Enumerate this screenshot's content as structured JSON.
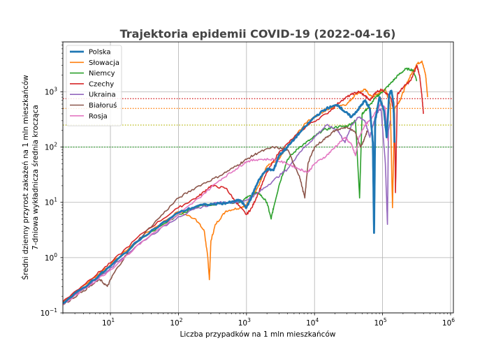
{
  "chart_data": {
    "type": "line",
    "title": "Trajektoria epidemii COVID-19 (2022-04-16)",
    "xlabel": "Liczba przypadków na 1 mln mieszkańców",
    "ylabel_line1": "Średni dzienny przyrost zakażeń na 1 mln mieszkańców",
    "ylabel_line2": "7-dniowa wykładnicza średnia krocząca",
    "xscale": "log",
    "yscale": "log",
    "xlim": [
      2,
      1100000
    ],
    "ylim": [
      0.1,
      8000
    ],
    "grid": true,
    "legend_position": "top-left",
    "x_ticks": [
      {
        "exp": 1,
        "label_base": "10",
        "label_exp": "1"
      },
      {
        "exp": 2,
        "label_base": "10",
        "label_exp": "2"
      },
      {
        "exp": 3,
        "label_base": "10",
        "label_exp": "3"
      },
      {
        "exp": 4,
        "label_base": "10",
        "label_exp": "4"
      },
      {
        "exp": 5,
        "label_base": "10",
        "label_exp": "5"
      },
      {
        "exp": 6,
        "label_base": "10",
        "label_exp": "6"
      }
    ],
    "y_ticks": [
      {
        "exp": -1,
        "label_base": "10",
        "label_exp": "−1"
      },
      {
        "exp": 0,
        "label_base": "10",
        "label_exp": "0"
      },
      {
        "exp": 1,
        "label_base": "10",
        "label_exp": "1"
      },
      {
        "exp": 2,
        "label_base": "10",
        "label_exp": "2"
      },
      {
        "exp": 3,
        "label_base": "10",
        "label_exp": "3"
      }
    ],
    "reference_lines": [
      {
        "y": 750,
        "color": "#d62728"
      },
      {
        "y": 500,
        "color": "#ff7f0e"
      },
      {
        "y": 250,
        "color": "#bcbd22"
      },
      {
        "y": 100,
        "color": "#2ca02c"
      }
    ],
    "series": [
      {
        "name": "Polska",
        "color": "#1f77b4",
        "width": 2.8,
        "points": [
          [
            2,
            0.15
          ],
          [
            5,
            0.35
          ],
          [
            10,
            0.7
          ],
          [
            30,
            2.4
          ],
          [
            100,
            6.5
          ],
          [
            200,
            8.8
          ],
          [
            400,
            9.5
          ],
          [
            600,
            10
          ],
          [
            800,
            11
          ],
          [
            1000,
            8
          ],
          [
            1200,
            13
          ],
          [
            1500,
            25
          ],
          [
            2000,
            40
          ],
          [
            2500,
            38
          ],
          [
            3000,
            70
          ],
          [
            4000,
            100
          ],
          [
            6000,
            180
          ],
          [
            10000,
            350
          ],
          [
            15000,
            500
          ],
          [
            22000,
            580
          ],
          [
            27000,
            450
          ],
          [
            35000,
            350
          ],
          [
            45000,
            500
          ],
          [
            55000,
            700
          ],
          [
            65000,
            500
          ],
          [
            72000,
            120
          ],
          [
            75000,
            2.8
          ],
          [
            78000,
            300
          ],
          [
            90000,
            800
          ],
          [
            105000,
            450
          ],
          [
            115000,
            150
          ],
          [
            125000,
            900
          ],
          [
            135000,
            1050
          ],
          [
            145000,
            600
          ],
          [
            150000,
            120
          ]
        ]
      },
      {
        "name": "Słowacja",
        "color": "#ff7f0e",
        "width": 1.6,
        "points": [
          [
            2,
            0.16
          ],
          [
            5,
            0.38
          ],
          [
            10,
            0.75
          ],
          [
            30,
            2.5
          ],
          [
            100,
            6.8
          ],
          [
            180,
            5
          ],
          [
            240,
            3
          ],
          [
            270,
            1
          ],
          [
            285,
            0.4
          ],
          [
            300,
            2
          ],
          [
            350,
            4
          ],
          [
            500,
            7
          ],
          [
            800,
            8
          ],
          [
            1000,
            9
          ],
          [
            1500,
            20
          ],
          [
            2000,
            45
          ],
          [
            3000,
            60
          ],
          [
            5000,
            150
          ],
          [
            8000,
            300
          ],
          [
            12000,
            400
          ],
          [
            20000,
            550
          ],
          [
            30000,
            600
          ],
          [
            40000,
            900
          ],
          [
            55000,
            1100
          ],
          [
            70000,
            800
          ],
          [
            90000,
            950
          ],
          [
            110000,
            1100
          ],
          [
            130000,
            600
          ],
          [
            140000,
            8
          ],
          [
            150000,
            500
          ],
          [
            180000,
            700
          ],
          [
            220000,
            1300
          ],
          [
            260000,
            2000
          ],
          [
            320000,
            3200
          ],
          [
            380000,
            3600
          ],
          [
            430000,
            2000
          ],
          [
            460000,
            800
          ]
        ]
      },
      {
        "name": "Niemcy",
        "color": "#2ca02c",
        "width": 1.6,
        "points": [
          [
            2,
            0.15
          ],
          [
            5,
            0.34
          ],
          [
            10,
            0.7
          ],
          [
            30,
            2.3
          ],
          [
            100,
            6
          ],
          [
            200,
            8.5
          ],
          [
            500,
            10
          ],
          [
            800,
            10
          ],
          [
            1100,
            13
          ],
          [
            1500,
            15
          ],
          [
            2000,
            10
          ],
          [
            2300,
            5
          ],
          [
            2500,
            8
          ],
          [
            3000,
            20
          ],
          [
            4000,
            60
          ],
          [
            6000,
            100
          ],
          [
            9000,
            140
          ],
          [
            13000,
            200
          ],
          [
            20000,
            230
          ],
          [
            30000,
            240
          ],
          [
            40000,
            300
          ],
          [
            46000,
            12
          ],
          [
            50000,
            400
          ],
          [
            60000,
            500
          ],
          [
            80000,
            800
          ],
          [
            100000,
            1000
          ],
          [
            130000,
            1400
          ],
          [
            170000,
            2000
          ],
          [
            220000,
            2600
          ],
          [
            280000,
            2500
          ],
          [
            320000,
            1600
          ]
        ]
      },
      {
        "name": "Czechy",
        "color": "#d62728",
        "width": 1.6,
        "points": [
          [
            2,
            0.16
          ],
          [
            5,
            0.4
          ],
          [
            10,
            0.8
          ],
          [
            30,
            2.8
          ],
          [
            100,
            8
          ],
          [
            200,
            13
          ],
          [
            300,
            20
          ],
          [
            500,
            18
          ],
          [
            700,
            10
          ],
          [
            1000,
            6
          ],
          [
            1200,
            8
          ],
          [
            1500,
            15
          ],
          [
            2000,
            35
          ],
          [
            3000,
            80
          ],
          [
            5000,
            150
          ],
          [
            8000,
            250
          ],
          [
            15000,
            400
          ],
          [
            25000,
            700
          ],
          [
            35000,
            900
          ],
          [
            45000,
            1000
          ],
          [
            55000,
            850
          ],
          [
            65000,
            700
          ],
          [
            80000,
            1000
          ],
          [
            100000,
            1100
          ],
          [
            130000,
            800
          ],
          [
            150000,
            400
          ],
          [
            155000,
            15
          ],
          [
            165000,
            900
          ],
          [
            200000,
            1200
          ],
          [
            260000,
            1600
          ],
          [
            320000,
            3000
          ],
          [
            350000,
            2000
          ],
          [
            380000,
            800
          ],
          [
            400000,
            400
          ]
        ]
      },
      {
        "name": "Ukraina",
        "color": "#9467bd",
        "width": 1.6,
        "points": [
          [
            2,
            0.15
          ],
          [
            5,
            0.33
          ],
          [
            10,
            0.65
          ],
          [
            30,
            2
          ],
          [
            100,
            5.5
          ],
          [
            200,
            8
          ],
          [
            400,
            10
          ],
          [
            700,
            10
          ],
          [
            1000,
            11
          ],
          [
            1500,
            15
          ],
          [
            2500,
            25
          ],
          [
            4000,
            40
          ],
          [
            6000,
            80
          ],
          [
            10000,
            150
          ],
          [
            15000,
            250
          ],
          [
            22000,
            200
          ],
          [
            28000,
            120
          ],
          [
            35000,
            250
          ],
          [
            45000,
            350
          ],
          [
            55000,
            300
          ],
          [
            65000,
            150
          ],
          [
            80000,
            400
          ],
          [
            95000,
            500
          ],
          [
            110000,
            50
          ],
          [
            118000,
            4
          ],
          [
            122000,
            200
          ],
          [
            130000,
            300
          ]
        ]
      },
      {
        "name": "Białoruś",
        "color": "#8c564b",
        "width": 1.6,
        "points": [
          [
            2,
            0.14
          ],
          [
            4,
            0.25
          ],
          [
            7,
            0.4
          ],
          [
            9,
            0.3
          ],
          [
            11,
            0.5
          ],
          [
            20,
            1.5
          ],
          [
            50,
            5
          ],
          [
            100,
            12
          ],
          [
            200,
            20
          ],
          [
            400,
            30
          ],
          [
            700,
            45
          ],
          [
            1000,
            60
          ],
          [
            1500,
            80
          ],
          [
            2500,
            100
          ],
          [
            4000,
            90
          ],
          [
            6000,
            30
          ],
          [
            7200,
            12
          ],
          [
            8000,
            50
          ],
          [
            10000,
            100
          ],
          [
            15000,
            150
          ],
          [
            20000,
            200
          ],
          [
            30000,
            230
          ],
          [
            40000,
            180
          ],
          [
            48000,
            100
          ],
          [
            55000,
            150
          ],
          [
            60000,
            200
          ]
        ]
      },
      {
        "name": "Rosja",
        "color": "#e377c2",
        "width": 1.6,
        "points": [
          [
            2,
            0.14
          ],
          [
            5,
            0.32
          ],
          [
            10,
            0.6
          ],
          [
            30,
            2
          ],
          [
            100,
            6
          ],
          [
            200,
            12
          ],
          [
            400,
            25
          ],
          [
            700,
            40
          ],
          [
            1000,
            55
          ],
          [
            1500,
            60
          ],
          [
            2500,
            60
          ],
          [
            4000,
            50
          ],
          [
            6000,
            40
          ],
          [
            8000,
            35
          ],
          [
            10000,
            50
          ],
          [
            15000,
            70
          ],
          [
            20000,
            100
          ],
          [
            28000,
            150
          ],
          [
            35000,
            110
          ],
          [
            40000,
            70
          ],
          [
            45000,
            150
          ],
          [
            55000,
            250
          ],
          [
            65000,
            300
          ],
          [
            80000,
            450
          ],
          [
            95000,
            600
          ],
          [
            110000,
            500
          ],
          [
            120000,
            130
          ]
        ]
      }
    ]
  }
}
